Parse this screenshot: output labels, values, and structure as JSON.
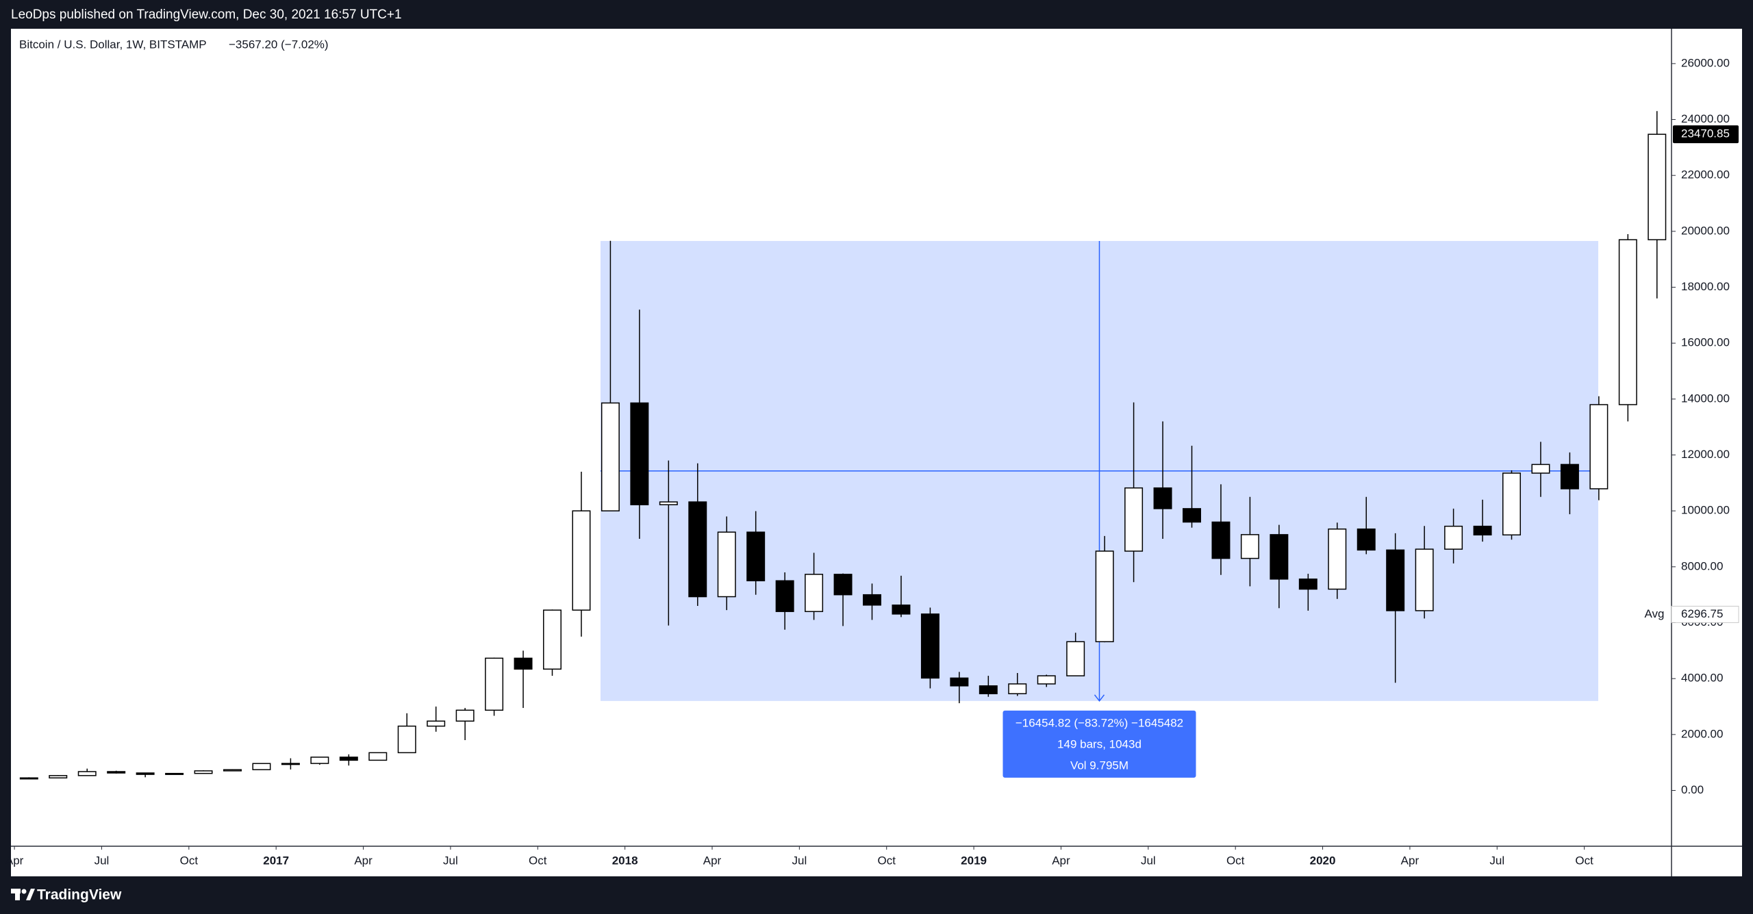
{
  "header": {
    "publisher": "LeoDps published on TradingView.com, Dec 30, 2021 16:57 UTC+1"
  },
  "chart_data": {
    "type": "candlestick",
    "title": "Bitcoin / U.S. Dollar, 1W, BITSTAMP",
    "change": "−3567.20 (−7.02%)",
    "x": [
      "2016-04",
      "2016-05",
      "2016-06",
      "2016-07",
      "2016-08",
      "2016-09",
      "2016-10",
      "2016-11",
      "2016-12",
      "2017-01",
      "2017-02",
      "2017-03",
      "2017-04",
      "2017-05",
      "2017-06",
      "2017-07",
      "2017-08",
      "2017-09",
      "2017-10",
      "2017-11",
      "2017-12",
      "2018-01",
      "2018-02",
      "2018-03",
      "2018-04",
      "2018-05",
      "2018-06",
      "2018-07",
      "2018-08",
      "2018-09",
      "2018-10",
      "2018-11",
      "2018-12",
      "2019-01",
      "2019-02",
      "2019-03",
      "2019-04",
      "2019-05",
      "2019-06",
      "2019-07",
      "2019-08",
      "2019-09",
      "2019-10",
      "2019-11",
      "2019-12",
      "2020-01",
      "2020-02",
      "2020-03",
      "2020-04",
      "2020-05",
      "2020-06",
      "2020-07",
      "2020-08",
      "2020-09",
      "2020-10",
      "2020-11",
      "2020-12"
    ],
    "open": [
      416,
      448,
      531,
      673,
      624,
      574,
      608,
      700,
      742,
      963,
      965,
      1190,
      1080,
      1350,
      2300,
      2480,
      2870,
      4730,
      4340,
      6450,
      10000,
      13860,
      10220,
      10320,
      6930,
      9240,
      7500,
      6400,
      7730,
      7000,
      6630,
      6310,
      4020,
      3740,
      3460,
      3810,
      4100,
      5320,
      8560,
      10820,
      10080,
      9600,
      8300,
      9150,
      7560,
      7200,
      9350,
      8600,
      6430,
      8630,
      9450,
      9140,
      11350,
      11660,
      10790,
      13800,
      19700
    ],
    "high": [
      470,
      550,
      780,
      705,
      630,
      620,
      720,
      760,
      980,
      1150,
      1200,
      1290,
      1350,
      2760,
      3000,
      2950,
      4750,
      5000,
      6470,
      11400,
      19660,
      17200,
      11800,
      11700,
      9800,
      9990,
      7800,
      8500,
      7760,
      7400,
      7680,
      6540,
      4240,
      4100,
      4200,
      4140,
      5640,
      9100,
      13880,
      13200,
      12330,
      10950,
      10500,
      9500,
      7750,
      9580,
      10500,
      9200,
      9460,
      10080,
      10400,
      11450,
      12470,
      12090,
      14100,
      19900,
      24300
    ],
    "low": [
      415,
      440,
      530,
      605,
      470,
      570,
      600,
      690,
      740,
      750,
      920,
      890,
      1080,
      1350,
      2100,
      1800,
      2670,
      2950,
      4100,
      5500,
      10000,
      9000,
      5900,
      6600,
      6450,
      7000,
      5750,
      6100,
      5880,
      6100,
      6200,
      3650,
      3120,
      3350,
      3380,
      3700,
      4100,
      5300,
      7450,
      9000,
      9400,
      7710,
      7300,
      6520,
      6430,
      6850,
      8450,
      3850,
      6150,
      8120,
      8900,
      8970,
      10500,
      9880,
      10380,
      13200,
      17600
    ],
    "close": [
      448,
      531,
      673,
      624,
      574,
      608,
      700,
      742,
      963,
      965,
      1190,
      1080,
      1350,
      2300,
      2480,
      2870,
      4730,
      4340,
      6450,
      10000,
      13860,
      10220,
      10320,
      6930,
      9240,
      7500,
      6400,
      7730,
      7000,
      6630,
      6310,
      4020,
      3740,
      3460,
      3810,
      4100,
      5320,
      8560,
      10820,
      10080,
      9600,
      8300,
      9150,
      7560,
      7200,
      9350,
      8600,
      6430,
      8630,
      9450,
      9140,
      11350,
      11660,
      10790,
      13800,
      19700,
      23470.85
    ],
    "xlim": [
      2016.24,
      2021.0
    ],
    "xticks": [
      {
        "value": 2016.25,
        "label": "Apr"
      },
      {
        "value": 2016.5,
        "label": "Jul"
      },
      {
        "value": 2016.75,
        "label": "Oct"
      },
      2017,
      {
        "value": 2017.25,
        "label": "Apr"
      },
      {
        "value": 2017.5,
        "label": "Jul"
      },
      {
        "value": 2017.75,
        "label": "Oct"
      },
      2018,
      {
        "value": 2018.25,
        "label": "Apr"
      },
      {
        "value": 2018.5,
        "label": "Jul"
      },
      {
        "value": 2018.75,
        "label": "Oct"
      },
      2019,
      {
        "value": 2019.25,
        "label": "Apr"
      },
      {
        "value": 2019.5,
        "label": "Jul"
      },
      {
        "value": 2019.75,
        "label": "Oct"
      },
      2020,
      {
        "value": 2020.25,
        "label": "Apr"
      },
      {
        "value": 2020.5,
        "label": "Jul"
      },
      {
        "value": 2020.75,
        "label": "Oct"
      }
    ],
    "ylim": [
      -1996,
      27246
    ],
    "yticks": [
      {
        "value": 0,
        "label": "0.00"
      },
      {
        "value": 2000,
        "label": "2000.00"
      },
      {
        "value": 4000,
        "label": "4000.00"
      },
      {
        "value": 6000,
        "label": "6000.00"
      },
      {
        "value": 8000,
        "label": "8000.00"
      },
      {
        "value": 10000,
        "label": "10000.00"
      },
      {
        "value": 12000,
        "label": "12000.00"
      },
      {
        "value": 14000,
        "label": "14000.00"
      },
      {
        "value": 16000,
        "label": "16000.00"
      },
      {
        "value": 18000,
        "label": "18000.00"
      },
      {
        "value": 20000,
        "label": "20000.00"
      },
      {
        "value": 22000,
        "label": "22000.00"
      },
      {
        "value": 24000,
        "label": "24000.00"
      },
      {
        "value": 26000,
        "label": "26000.00"
      }
    ],
    "last_price": 23470.85,
    "average": {
      "label": "Avg",
      "value": 6296.75
    },
    "measure": {
      "price_range": [
        19655,
        3200
      ],
      "date_range": [
        2017.93,
        2020.79
      ],
      "lines": [
        "−16454.82 (−83.72%) −1645482",
        "149 bars, 1043d",
        "Vol 9.795M"
      ]
    }
  },
  "footer": {
    "brand": "TradingView"
  }
}
